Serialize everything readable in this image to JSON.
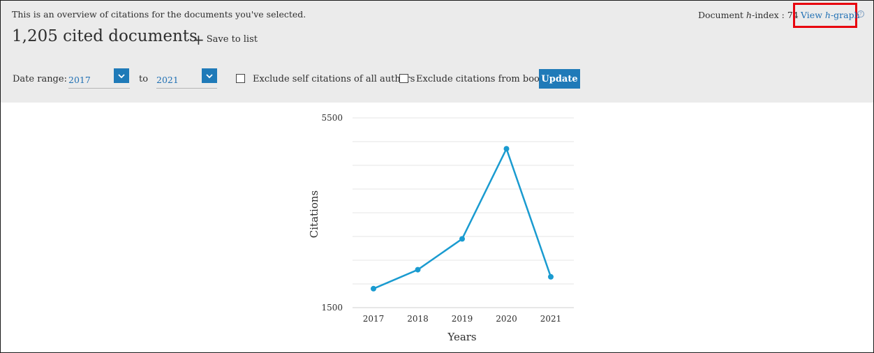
{
  "header": {
    "overview_text": "This is an overview of citations for the documents you've selected.",
    "cited_documents": "1,205 cited documents",
    "save_to_list": "Save to list",
    "h_index_prefix": "Document ",
    "h_index_italic": "h",
    "h_index_suffix": "-index : 74",
    "view_prefix": "View ",
    "view_italic": "h",
    "view_suffix": "-graph",
    "highlight_color": "#e8000d",
    "accent_color": "#1f7ab8"
  },
  "filters": {
    "date_range_label": "Date range:",
    "from_value": "2017",
    "to_label": "to",
    "to_value": "2021",
    "exclude_self": "Exclude self citations of all authors",
    "exclude_books": "Exclude citations from books",
    "update_label": "Update"
  },
  "chart_data": {
    "type": "line",
    "categories": [
      "2017",
      "2018",
      "2019",
      "2020",
      "2021"
    ],
    "series": [
      {
        "values": [
          1900,
          2300,
          2950,
          4850,
          2150
        ],
        "color": "#1a9bd0"
      }
    ],
    "xlabel": "Years",
    "ylabel": "Citations",
    "ylim": [
      1500,
      5500
    ],
    "ytick_labels": [
      "5500",
      "1500"
    ],
    "grid": true
  }
}
